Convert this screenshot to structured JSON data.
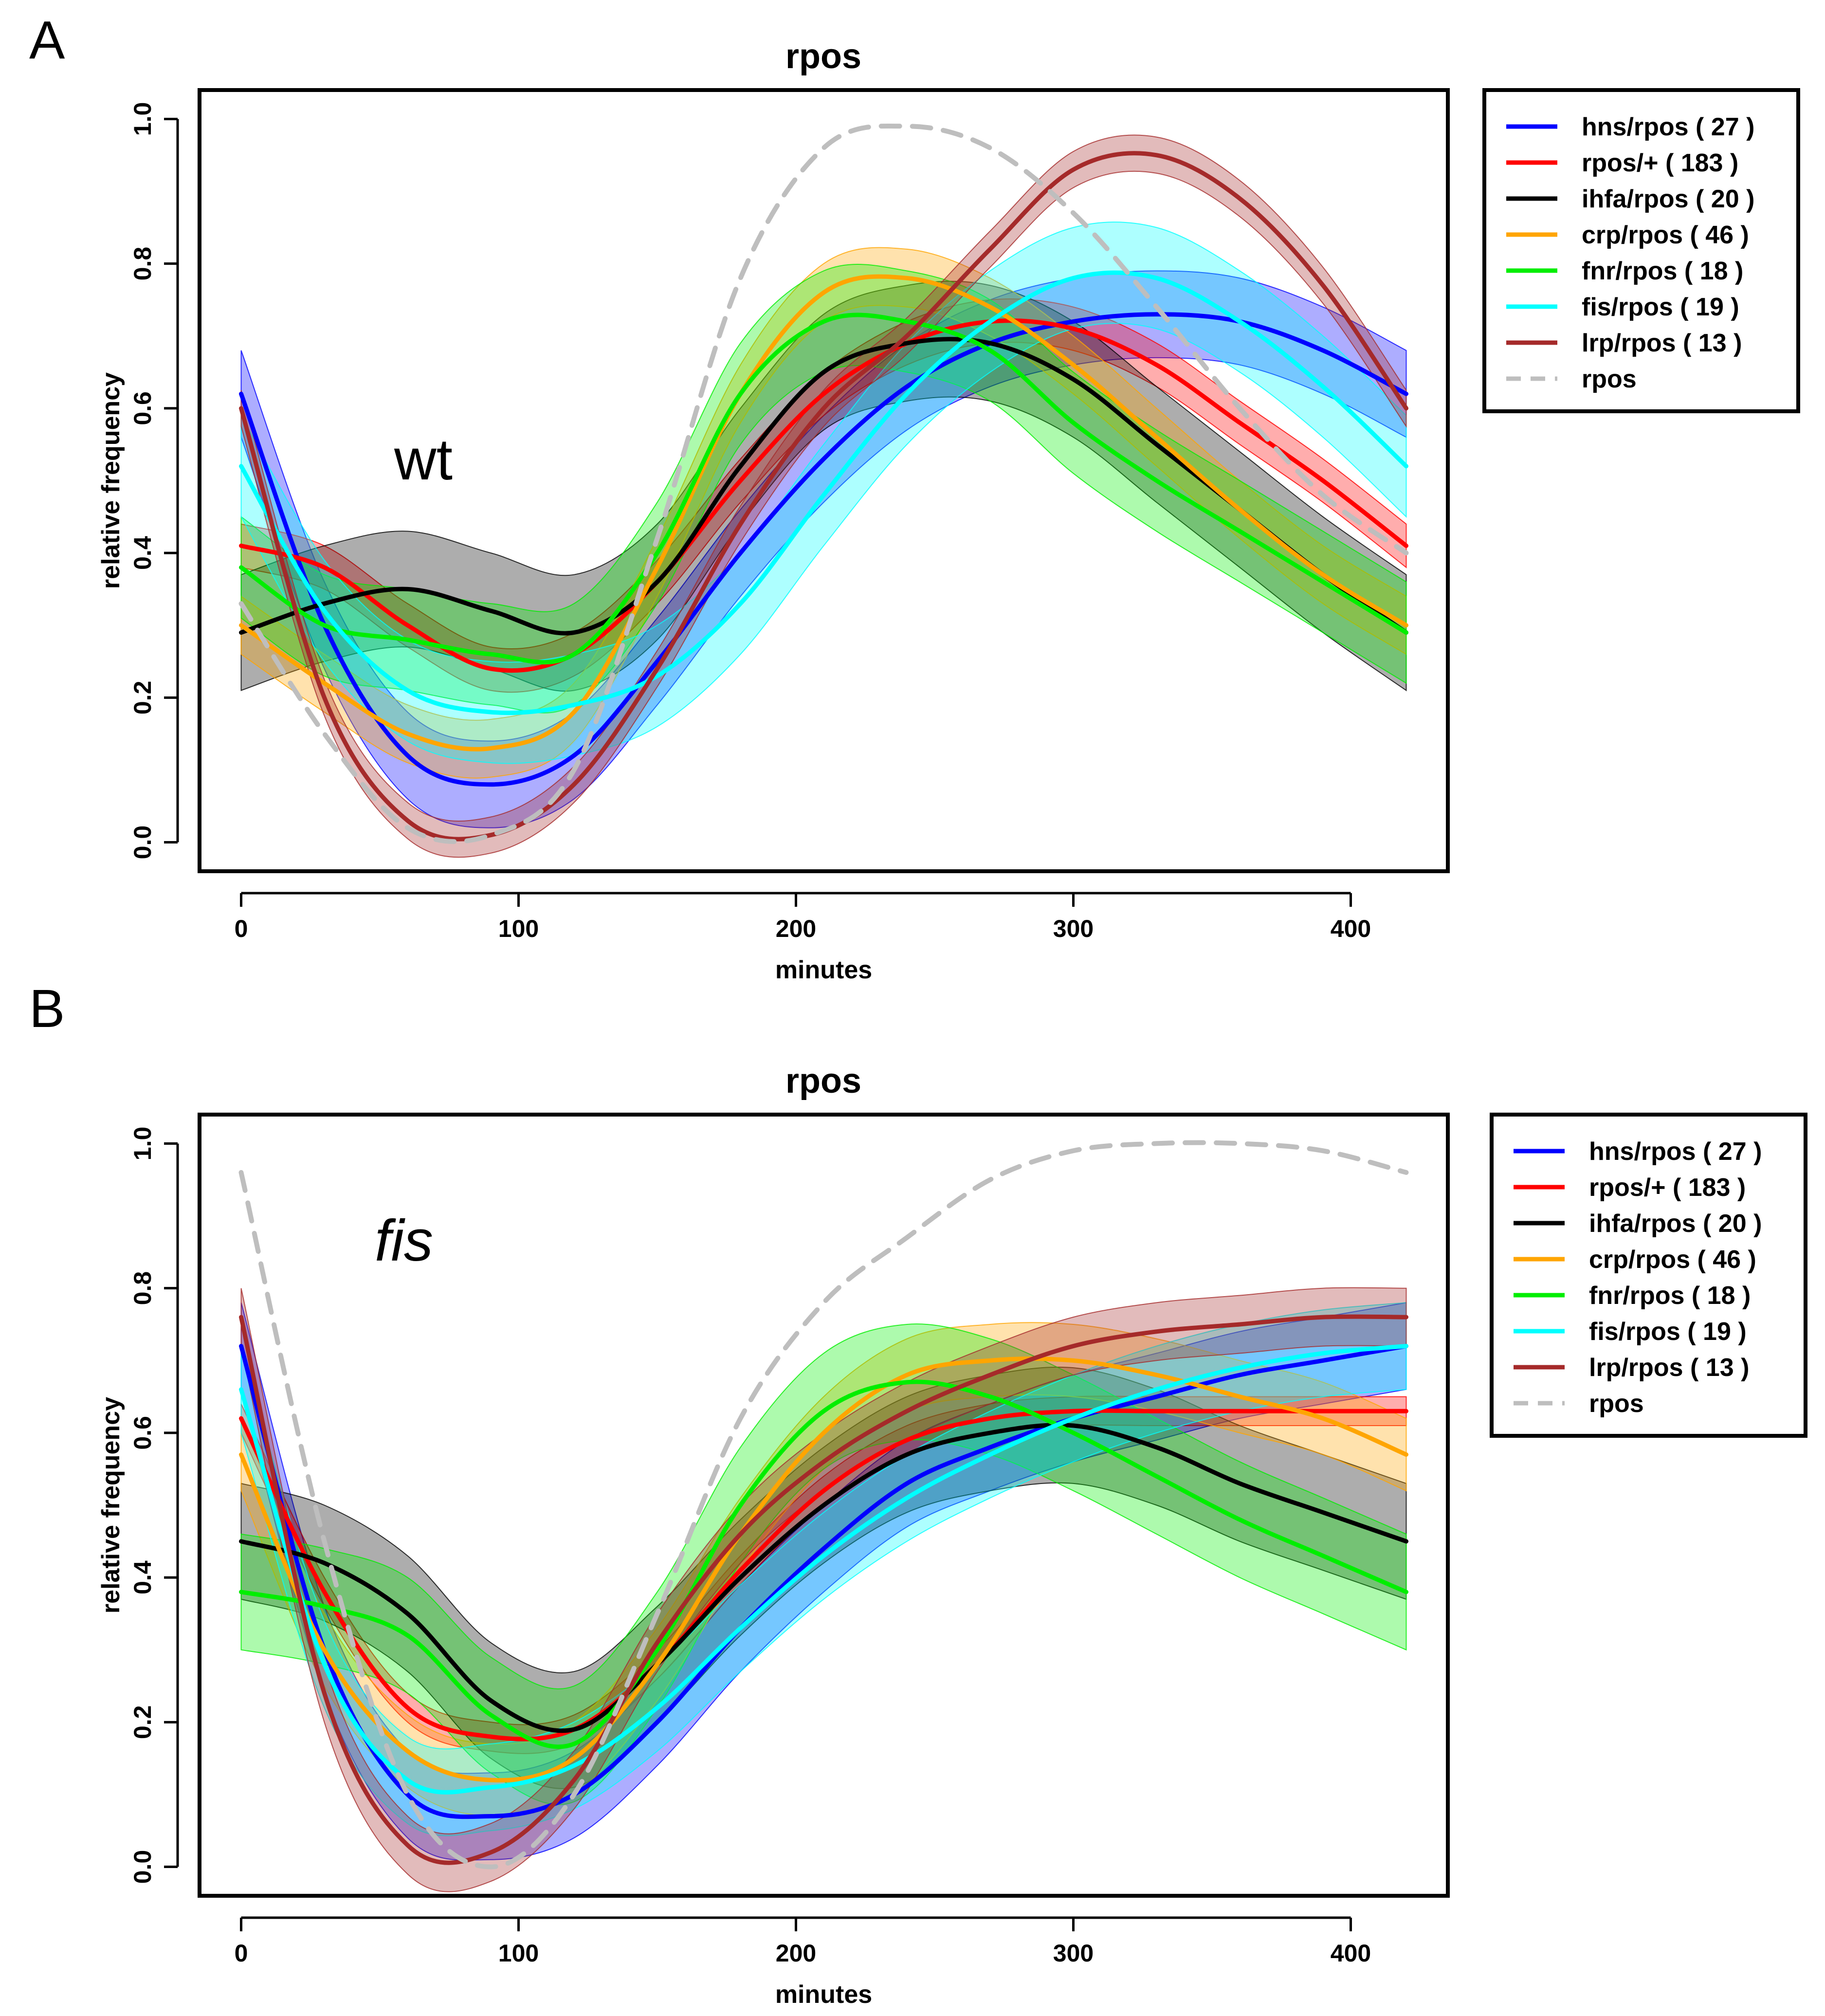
{
  "figure": {
    "panels": [
      {
        "letter": "A",
        "annotation": "wt",
        "annotation_style": "normal"
      },
      {
        "letter": "B",
        "annotation": "fis",
        "annotation_style": "italic"
      }
    ]
  },
  "chart_data": [
    {
      "type": "line",
      "panel": "A",
      "title": "rpos",
      "xlabel": "minutes",
      "ylabel": "relative frequency",
      "xlim": [
        -15,
        435
      ],
      "ylim": [
        -0.04,
        1.04
      ],
      "xticks": [
        0,
        100,
        200,
        300,
        400
      ],
      "xtick_labels": [
        "0",
        "100",
        "200",
        "300",
        "400"
      ],
      "yticks": [
        0.0,
        0.2,
        0.4,
        0.6,
        0.8,
        1.0
      ],
      "ytick_labels": [
        "0.0",
        "0.2",
        "0.4",
        "0.6",
        "0.8",
        "1.0"
      ],
      "grid": false,
      "legend_position": "outside-right",
      "x": [
        0,
        30,
        60,
        90,
        120,
        150,
        180,
        210,
        240,
        270,
        300,
        330,
        360,
        390,
        420
      ],
      "series": [
        {
          "name": "hns/rpos",
          "count": "27",
          "legend_label": "hns/rpos ( 27 )",
          "color": "#0000ff",
          "band": 0.06,
          "values": [
            0.62,
            0.3,
            0.12,
            0.08,
            0.12,
            0.25,
            0.4,
            0.53,
            0.63,
            0.69,
            0.72,
            0.73,
            0.72,
            0.68,
            0.62
          ]
        },
        {
          "name": "rpos/+",
          "count": "183",
          "legend_label": "rpos/+ ( 183 )",
          "color": "#ff0000",
          "band": 0.03,
          "values": [
            0.41,
            0.38,
            0.3,
            0.24,
            0.26,
            0.36,
            0.5,
            0.62,
            0.69,
            0.72,
            0.71,
            0.66,
            0.58,
            0.5,
            0.41
          ]
        },
        {
          "name": "ihfa/rpos",
          "count": "20",
          "legend_label": "ihfa/rpos ( 20 )",
          "color": "#000000",
          "band": 0.08,
          "values": [
            0.29,
            0.33,
            0.35,
            0.32,
            0.29,
            0.36,
            0.52,
            0.65,
            0.69,
            0.69,
            0.64,
            0.55,
            0.46,
            0.37,
            0.29
          ]
        },
        {
          "name": "crp/rpos",
          "count": "46",
          "legend_label": "crp/rpos ( 46 )",
          "color": "#ffa500",
          "band": 0.04,
          "values": [
            0.3,
            0.22,
            0.15,
            0.13,
            0.18,
            0.38,
            0.62,
            0.76,
            0.78,
            0.74,
            0.66,
            0.56,
            0.46,
            0.37,
            0.3
          ]
        },
        {
          "name": "fnr/rpos",
          "count": "18",
          "legend_label": "fnr/rpos ( 18 )",
          "color": "#00ee00",
          "band": 0.07,
          "values": [
            0.38,
            0.3,
            0.28,
            0.26,
            0.26,
            0.4,
            0.62,
            0.72,
            0.72,
            0.68,
            0.58,
            0.5,
            0.43,
            0.36,
            0.29
          ]
        },
        {
          "name": "fis/rpos",
          "count": "19",
          "legend_label": "fis/rpos ( 19 )",
          "color": "#00ffff",
          "band": 0.07,
          "values": [
            0.52,
            0.32,
            0.21,
            0.18,
            0.19,
            0.23,
            0.33,
            0.48,
            0.62,
            0.72,
            0.78,
            0.78,
            0.72,
            0.63,
            0.52
          ]
        },
        {
          "name": "lrp/rpos",
          "count": "13",
          "legend_label": "lrp/rpos ( 13 )",
          "color": "#a52a2a",
          "band": 0.025,
          "values": [
            0.6,
            0.2,
            0.03,
            0.01,
            0.08,
            0.24,
            0.44,
            0.6,
            0.7,
            0.82,
            0.93,
            0.95,
            0.89,
            0.77,
            0.6
          ]
        },
        {
          "name": "rpos",
          "count": "",
          "legend_label": "rpos",
          "color": "#bebebe",
          "dashed": true,
          "band": 0,
          "values": [
            0.33,
            0.15,
            0.02,
            0.01,
            0.1,
            0.42,
            0.78,
            0.96,
            0.99,
            0.96,
            0.87,
            0.74,
            0.6,
            0.48,
            0.4
          ]
        }
      ]
    },
    {
      "type": "line",
      "panel": "B",
      "title": "rpos",
      "xlabel": "minutes",
      "ylabel": "relative frequency",
      "xlim": [
        -15,
        435
      ],
      "ylim": [
        -0.04,
        1.04
      ],
      "xticks": [
        0,
        100,
        200,
        300,
        400
      ],
      "xtick_labels": [
        "0",
        "100",
        "200",
        "300",
        "400"
      ],
      "yticks": [
        0.0,
        0.2,
        0.4,
        0.6,
        0.8,
        1.0
      ],
      "ytick_labels": [
        "0.0",
        "0.2",
        "0.4",
        "0.6",
        "0.8",
        "1.0"
      ],
      "grid": false,
      "legend_position": "outside-right",
      "x": [
        0,
        30,
        60,
        90,
        120,
        150,
        180,
        210,
        240,
        270,
        300,
        330,
        360,
        390,
        420
      ],
      "series": [
        {
          "name": "hns/rpos",
          "count": "27",
          "legend_label": "hns/rpos ( 27 )",
          "color": "#0000ff",
          "band": 0.06,
          "values": [
            0.72,
            0.3,
            0.1,
            0.07,
            0.1,
            0.2,
            0.33,
            0.44,
            0.53,
            0.58,
            0.62,
            0.65,
            0.68,
            0.7,
            0.72
          ]
        },
        {
          "name": "rpos/+",
          "count": "183",
          "legend_label": "rpos/+ ( 183 )",
          "color": "#ff0000",
          "band": 0.02,
          "values": [
            0.62,
            0.38,
            0.22,
            0.18,
            0.19,
            0.28,
            0.41,
            0.52,
            0.59,
            0.62,
            0.63,
            0.63,
            0.63,
            0.63,
            0.63
          ]
        },
        {
          "name": "ihfa/rpos",
          "count": "20",
          "legend_label": "ihfa/rpos ( 20 )",
          "color": "#000000",
          "band": 0.08,
          "values": [
            0.45,
            0.42,
            0.35,
            0.23,
            0.19,
            0.28,
            0.4,
            0.5,
            0.57,
            0.6,
            0.61,
            0.58,
            0.53,
            0.49,
            0.45
          ]
        },
        {
          "name": "crp/rpos",
          "count": "46",
          "legend_label": "crp/rpos ( 46 )",
          "color": "#ffa500",
          "band": 0.05,
          "values": [
            0.57,
            0.3,
            0.16,
            0.12,
            0.15,
            0.28,
            0.46,
            0.6,
            0.68,
            0.7,
            0.7,
            0.68,
            0.65,
            0.62,
            0.57
          ]
        },
        {
          "name": "fnr/rpos",
          "count": "18",
          "legend_label": "fnr/rpos ( 18 )",
          "color": "#00ee00",
          "band": 0.08,
          "values": [
            0.38,
            0.36,
            0.32,
            0.21,
            0.17,
            0.3,
            0.5,
            0.63,
            0.67,
            0.65,
            0.6,
            0.54,
            0.48,
            0.43,
            0.38
          ]
        },
        {
          "name": "fis/rpos",
          "count": "19",
          "legend_label": "fis/rpos ( 19 )",
          "color": "#00ffff",
          "band": 0.06,
          "values": [
            0.66,
            0.28,
            0.12,
            0.11,
            0.14,
            0.22,
            0.33,
            0.43,
            0.51,
            0.57,
            0.62,
            0.66,
            0.69,
            0.71,
            0.72
          ]
        },
        {
          "name": "lrp/rpos",
          "count": "13",
          "legend_label": "lrp/rpos ( 13 )",
          "color": "#a52a2a",
          "band": 0.04,
          "values": [
            0.76,
            0.24,
            0.03,
            0.02,
            0.12,
            0.31,
            0.46,
            0.56,
            0.63,
            0.68,
            0.72,
            0.74,
            0.75,
            0.76,
            0.76
          ]
        },
        {
          "name": "rpos",
          "count": "",
          "legend_label": "rpos",
          "color": "#bebebe",
          "dashed": true,
          "band": 0,
          "values": [
            0.96,
            0.45,
            0.1,
            0.0,
            0.1,
            0.35,
            0.62,
            0.78,
            0.87,
            0.95,
            0.99,
            1.0,
            1.0,
            0.99,
            0.96
          ]
        }
      ]
    }
  ]
}
